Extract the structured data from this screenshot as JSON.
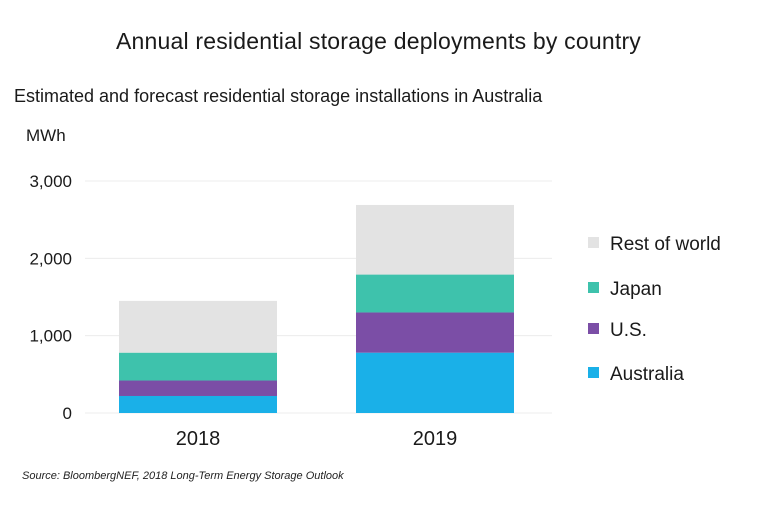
{
  "title": "Annual residential storage deployments by country",
  "subtitle": "Estimated and forecast residential storage installations in Australia",
  "source": "Source: BloombergNEF, 2018 Long-Term Energy Storage Outlook",
  "chart_data": {
    "type": "bar",
    "stacked": true,
    "ylabel": "MWh",
    "ylim": [
      0,
      3000
    ],
    "yticks": [
      0,
      1000,
      2000,
      3000
    ],
    "ytick_labels": [
      "0",
      "1,000",
      "2,000",
      "3,000"
    ],
    "categories": [
      "2018",
      "2019"
    ],
    "grid": true,
    "legend": "right",
    "series": [
      {
        "name": "Australia",
        "color": "#1ab0e8",
        "values": [
          220,
          780
        ]
      },
      {
        "name": "U.S.",
        "color": "#7b4ea6",
        "values": [
          200,
          520
        ]
      },
      {
        "name": "Japan",
        "color": "#3ec2ac",
        "values": [
          360,
          490
        ]
      },
      {
        "name": "Rest of world",
        "color": "#e3e3e3",
        "values": [
          670,
          900
        ]
      }
    ]
  }
}
